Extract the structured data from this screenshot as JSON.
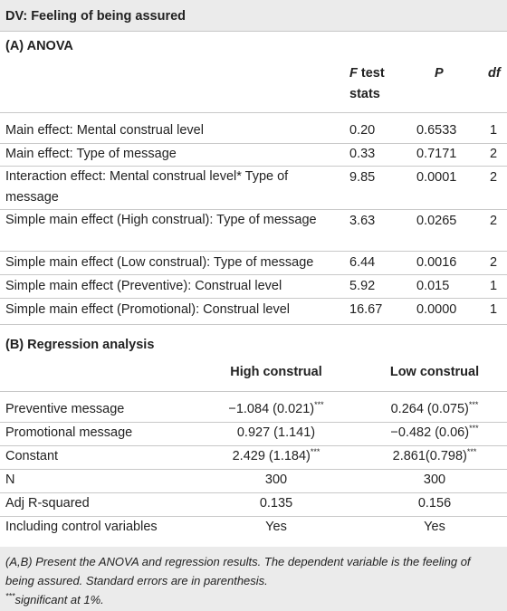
{
  "title": "DV: Feeling of being assured",
  "anova": {
    "label": "(A) ANOVA",
    "headers": {
      "f_italic": "F",
      "f_rest": " test",
      "f_line2": "stats",
      "p": "P",
      "df": "df"
    },
    "rows": [
      {
        "label": "Main effect: Mental construal level",
        "f": "0.20",
        "p": "0.6533",
        "df": "1"
      },
      {
        "label": "Main effect: Type of message",
        "f": "0.33",
        "p": "0.7171",
        "df": "2"
      },
      {
        "label": "Interaction effect: Mental construal level* Type of message",
        "f": "9.85",
        "p": "0.0001",
        "df": "2"
      },
      {
        "label": "Simple main effect (High construal): Type of message",
        "f": "3.63",
        "p": "0.0265",
        "df": "2"
      },
      {
        "label": "Simple main effect (Low construal): Type of message",
        "f": "6.44",
        "p": "0.0016",
        "df": "2"
      },
      {
        "label": "Simple main effect (Preventive): Construal level",
        "f": "5.92",
        "p": "0.015",
        "df": "1"
      },
      {
        "label": "Simple main effect (Promotional): Construal level",
        "f": "16.67",
        "p": "0.0000",
        "df": "1"
      }
    ]
  },
  "regression": {
    "label": "(B) Regression analysis",
    "headers": {
      "high": "High construal",
      "low": "Low construal"
    },
    "rows": [
      {
        "label": "Preventive message",
        "high": "−1.084 (0.021)",
        "high_sup": "***",
        "low": "0.264 (0.075)",
        "low_sup": "***"
      },
      {
        "label": "Promotional message",
        "high": "0.927 (1.141)",
        "high_sup": "",
        "low": "−0.482 (0.06)",
        "low_sup": "***"
      },
      {
        "label": "Constant",
        "high": "2.429 (1.184)",
        "high_sup": "***",
        "low": "2.861(0.798)",
        "low_sup": "***"
      },
      {
        "label": "N",
        "high": "300",
        "high_sup": "",
        "low": "300",
        "low_sup": ""
      },
      {
        "label": "Adj R-squared",
        "high": "0.135",
        "high_sup": "",
        "low": "0.156",
        "low_sup": ""
      },
      {
        "label": "Including control variables",
        "high": "Yes",
        "high_sup": "",
        "low": "Yes",
        "low_sup": ""
      }
    ]
  },
  "notes": {
    "line1": "(A,B) Present the ANOVA and regression results. The dependent variable is the feeling of being assured. Standard errors are in parenthesis.",
    "sup": "***",
    "line2": "significant at 1%."
  }
}
